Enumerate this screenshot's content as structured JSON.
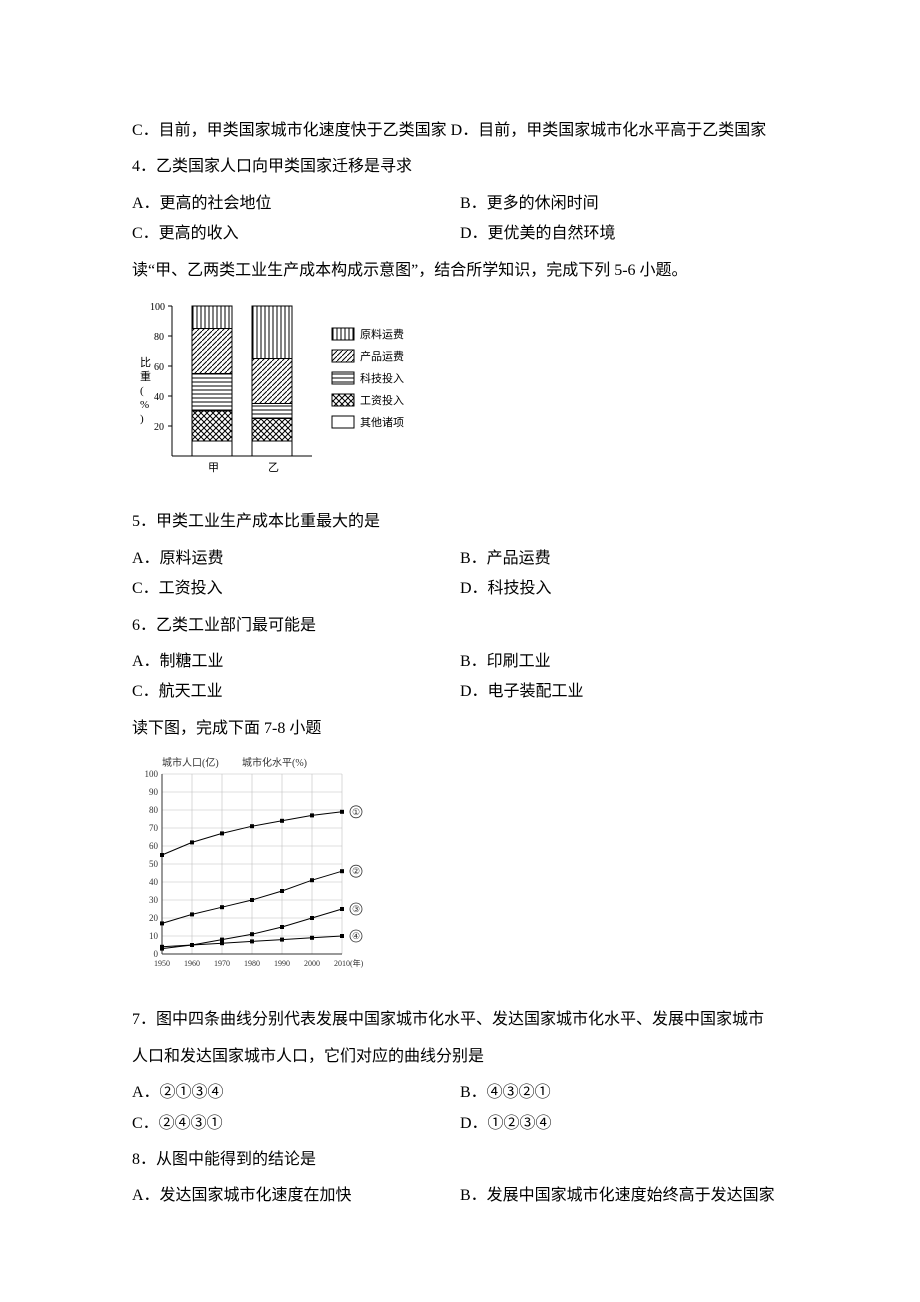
{
  "q_intro_line1": "C．目前，甲类国家城市化速度快于乙类国家 D．目前，甲类国家城市化水平高于乙类国家",
  "q4": {
    "stem": "4．乙类国家人口向甲类国家迁移是寻求",
    "a": "A．更高的社会地位",
    "b": "B．更多的休闲时间",
    "c": "C．更高的收入",
    "d": "D．更优美的自然环境"
  },
  "chart1_intro": "读“甲、乙两类工业生产成本构成示意图”，结合所学知识，完成下列 5-6 小题。",
  "chart1": {
    "type": "stacked-bar",
    "y_label": "比 重 （ % ）",
    "x_labels": [
      "甲",
      "乙"
    ],
    "y_ticks": [
      20,
      40,
      60,
      80,
      100
    ],
    "legend": {
      "a": "原料运费",
      "b": "产品运费",
      "c": "科技投入",
      "d": "工资投入",
      "e": "其他诸项"
    },
    "bars": {
      "jia": {
        "other": 10,
        "wage": 20,
        "tech": 25,
        "product": 30,
        "material": 15
      },
      "yi": {
        "other": 10,
        "wage": 15,
        "tech": 10,
        "product": 30,
        "material": 35
      }
    },
    "colors": {
      "bg": "#ffffff",
      "axis": "#000000",
      "text": "#000000"
    }
  },
  "q5": {
    "stem": "5．甲类工业生产成本比重最大的是",
    "a": "A．原料运费",
    "b": "B．产品运费",
    "c": "C．工资投入",
    "d": "D．科技投入"
  },
  "q6": {
    "stem": "6．乙类工业部门最可能是",
    "a": "A．制糖工业",
    "b": "B．印刷工业",
    "c": "C．航天工业",
    "d": "D．电子装配工业"
  },
  "chart2_intro": "读下图，完成下面 7-8 小题",
  "chart2": {
    "type": "line",
    "title_left": "城市人口(亿)",
    "title_right": "城市化水平(%)",
    "y_ticks": [
      0,
      10,
      20,
      30,
      40,
      50,
      60,
      70,
      80,
      90,
      100
    ],
    "x_ticks": [
      "1950",
      "1960",
      "1970",
      "1980",
      "1990",
      "2000",
      "2010",
      "(年)"
    ],
    "series_labels": {
      "s1": "①",
      "s2": "②",
      "s3": "③",
      "s4": "④"
    },
    "series": {
      "s1": [
        {
          "x": 1950,
          "y": 55
        },
        {
          "x": 1960,
          "y": 62
        },
        {
          "x": 1970,
          "y": 67
        },
        {
          "x": 1980,
          "y": 71
        },
        {
          "x": 1990,
          "y": 74
        },
        {
          "x": 2000,
          "y": 77
        },
        {
          "x": 2010,
          "y": 79
        }
      ],
      "s2": [
        {
          "x": 1950,
          "y": 17
        },
        {
          "x": 1960,
          "y": 22
        },
        {
          "x": 1970,
          "y": 26
        },
        {
          "x": 1980,
          "y": 30
        },
        {
          "x": 1990,
          "y": 35
        },
        {
          "x": 2000,
          "y": 41
        },
        {
          "x": 2010,
          "y": 46
        }
      ],
      "s3": [
        {
          "x": 1950,
          "y": 3
        },
        {
          "x": 1960,
          "y": 5
        },
        {
          "x": 1970,
          "y": 8
        },
        {
          "x": 1980,
          "y": 11
        },
        {
          "x": 1990,
          "y": 15
        },
        {
          "x": 2000,
          "y": 20
        },
        {
          "x": 2010,
          "y": 25
        }
      ],
      "s4": [
        {
          "x": 1950,
          "y": 4
        },
        {
          "x": 1960,
          "y": 5
        },
        {
          "x": 1970,
          "y": 6
        },
        {
          "x": 1980,
          "y": 7
        },
        {
          "x": 1990,
          "y": 8
        },
        {
          "x": 2000,
          "y": 9
        },
        {
          "x": 2010,
          "y": 10
        }
      ]
    },
    "colors": {
      "bg": "#ffffff",
      "axis": "#333333",
      "grid": "#bfbfbf",
      "line": "#000000",
      "marker": "#000000",
      "text": "#333333"
    },
    "xlim": [
      1950,
      2010
    ],
    "ylim": [
      0,
      100
    ]
  },
  "q7": {
    "stem1": "7．图中四条曲线分别代表发展中国家城市化水平、发达国家城市化水平、发展中国家城市",
    "stem2": "人口和发达国家城市人口，它们对应的曲线分别是",
    "a": "A．②①③④",
    "b": "B．④③②①",
    "c": "C．②④③①",
    "d": "D．①②③④"
  },
  "q8": {
    "stem": "8．从图中能得到的结论是",
    "a": "A．发达国家城市化速度在加快",
    "b": "B．发展中国家城市化速度始终高于发达国家"
  }
}
